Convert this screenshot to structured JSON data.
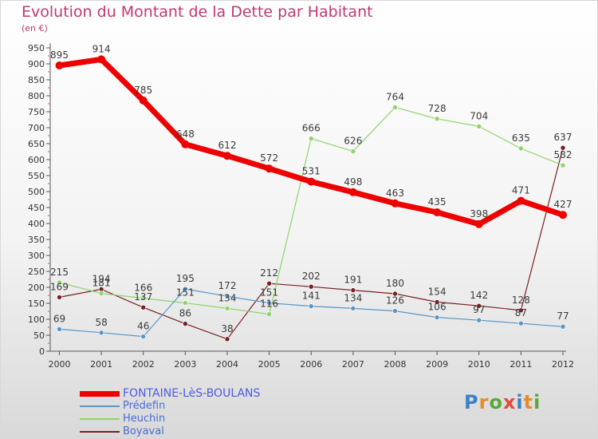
{
  "title": "Evolution du Montant de la Dette par Habitant",
  "unit": "(en €)",
  "logo": {
    "text": "Proxiti",
    "letter_colors": [
      "#3b82c4",
      "#e88a2a",
      "#5aa83a",
      "#e24a3a",
      "#3b82c4",
      "#e88a2a",
      "#5aa83a"
    ]
  },
  "chart_data": {
    "type": "line",
    "x": [
      "2000",
      "2001",
      "2002",
      "2003",
      "2004",
      "2005",
      "2006",
      "2007",
      "2008",
      "2009",
      "2010",
      "2011",
      "2012"
    ],
    "y_ticks": [
      "0",
      "50",
      "100",
      "150",
      "200",
      "250",
      "300",
      "350",
      "400",
      "450",
      "500",
      "550",
      "600",
      "650",
      "700",
      "750",
      "800",
      "850",
      "900",
      "950"
    ],
    "ylim": [
      0,
      950
    ],
    "grid": false,
    "legend_position": "bottom-left",
    "series": [
      {
        "name": "FONTAINE-LèS-BOULANS",
        "color": "#ee0000",
        "width": 7,
        "values": [
          895,
          914,
          785,
          648,
          612,
          572,
          531,
          498,
          463,
          435,
          398,
          471,
          427
        ],
        "labels": [
          "895",
          "914",
          "785",
          "648",
          "612",
          "572",
          "531",
          "498",
          "463",
          "435",
          "398",
          "471",
          "427"
        ]
      },
      {
        "name": "Prédefin",
        "color": "#5a96c8",
        "width": 1.2,
        "values": [
          69,
          58,
          46,
          195,
          172,
          151,
          141,
          134,
          126,
          106,
          97,
          87,
          77
        ],
        "labels": [
          "69",
          "58",
          "46",
          "195",
          "172",
          "151",
          "141",
          "134",
          "126",
          "106",
          "97",
          "87",
          "77"
        ]
      },
      {
        "name": "Heuchin",
        "color": "#8fd46a",
        "width": 1.2,
        "values": [
          215,
          181,
          166,
          151,
          134,
          116,
          666,
          626,
          764,
          728,
          704,
          635,
          582
        ],
        "labels": [
          "215",
          "181",
          "166",
          "151",
          "134",
          "116",
          "666",
          "626",
          "764",
          "728",
          "704",
          "635",
          "582"
        ]
      },
      {
        "name": "Boyaval",
        "color": "#7a1f24",
        "width": 1.2,
        "values": [
          169,
          194,
          137,
          86,
          38,
          212,
          202,
          191,
          180,
          154,
          142,
          128,
          637
        ],
        "labels": [
          "169",
          "194",
          "137",
          "86",
          "38",
          "212",
          "202",
          "191",
          "180",
          "154",
          "142",
          "128",
          "637"
        ]
      }
    ]
  }
}
